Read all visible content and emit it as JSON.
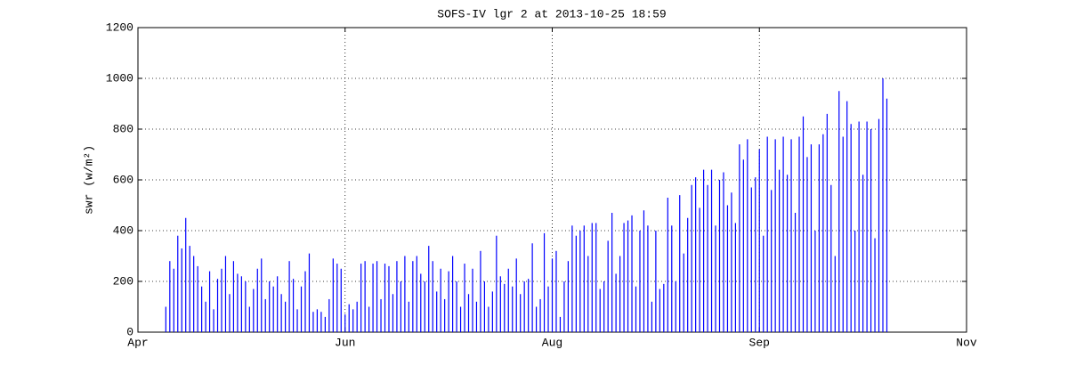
{
  "chart_data": {
    "type": "stem",
    "title": "SOFS-IV lgr 2 at 2013-10-25 18:59",
    "ylabel": "swr (w/m²)",
    "xlim": [
      0,
      208
    ],
    "xticks": [
      {
        "value": 0,
        "label": "Apr"
      },
      {
        "value": 52,
        "label": "Jun"
      },
      {
        "value": 104,
        "label": "Aug"
      },
      {
        "value": 156,
        "label": "Sep"
      },
      {
        "value": 208,
        "label": "Nov"
      }
    ],
    "ylim": [
      0,
      1200
    ],
    "yticks": [
      0,
      200,
      400,
      600,
      800,
      1000,
      1200
    ],
    "grid": true,
    "color": "#0000ff",
    "x": [
      7,
      8,
      9,
      10,
      11,
      12,
      13,
      14,
      15,
      16,
      17,
      18,
      19,
      20,
      21,
      22,
      23,
      24,
      25,
      26,
      27,
      28,
      29,
      30,
      31,
      32,
      33,
      34,
      35,
      36,
      37,
      38,
      39,
      40,
      41,
      42,
      43,
      44,
      45,
      46,
      47,
      48,
      49,
      50,
      51,
      52,
      53,
      54,
      55,
      56,
      57,
      58,
      59,
      60,
      61,
      62,
      63,
      64,
      65,
      66,
      67,
      68,
      69,
      70,
      71,
      72,
      73,
      74,
      75,
      76,
      77,
      78,
      79,
      80,
      81,
      82,
      83,
      84,
      85,
      86,
      87,
      88,
      89,
      90,
      91,
      92,
      93,
      94,
      95,
      96,
      97,
      98,
      99,
      100,
      101,
      102,
      103,
      104,
      105,
      106,
      107,
      108,
      109,
      110,
      111,
      112,
      113,
      114,
      115,
      116,
      117,
      118,
      119,
      120,
      121,
      122,
      123,
      124,
      125,
      126,
      127,
      128,
      129,
      130,
      131,
      132,
      133,
      134,
      135,
      136,
      137,
      138,
      139,
      140,
      141,
      142,
      143,
      144,
      145,
      146,
      147,
      148,
      149,
      150,
      151,
      152,
      153,
      154,
      155,
      156,
      157,
      158,
      159,
      160,
      161,
      162,
      163,
      164,
      165,
      166,
      167,
      168,
      169,
      170,
      171,
      172,
      173,
      174,
      175,
      176,
      177,
      178,
      179,
      180,
      181,
      182,
      183,
      184,
      185,
      186,
      187,
      188
    ],
    "values": [
      100,
      280,
      250,
      380,
      330,
      450,
      340,
      300,
      260,
      180,
      120,
      240,
      90,
      210,
      250,
      300,
      150,
      280,
      230,
      220,
      200,
      100,
      170,
      250,
      290,
      130,
      200,
      180,
      220,
      150,
      120,
      280,
      210,
      90,
      180,
      240,
      310,
      80,
      90,
      80,
      60,
      130,
      290,
      270,
      250,
      70,
      110,
      90,
      120,
      270,
      280,
      100,
      270,
      280,
      130,
      270,
      260,
      150,
      280,
      200,
      300,
      120,
      280,
      300,
      230,
      200,
      340,
      280,
      160,
      250,
      130,
      240,
      300,
      200,
      100,
      270,
      150,
      250,
      120,
      320,
      200,
      100,
      160,
      380,
      220,
      190,
      250,
      180,
      290,
      150,
      200,
      210,
      350,
      100,
      130,
      390,
      180,
      290,
      320,
      60,
      200,
      280,
      420,
      380,
      400,
      420,
      300,
      430,
      430,
      170,
      200,
      360,
      470,
      230,
      300,
      430,
      440,
      460,
      180,
      400,
      480,
      420,
      120,
      400,
      170,
      190,
      530,
      420,
      200,
      540,
      310,
      450,
      580,
      610,
      490,
      640,
      580,
      640,
      420,
      600,
      630,
      500,
      550,
      430,
      740,
      680,
      760,
      570,
      610,
      720,
      380,
      770,
      560,
      760,
      640,
      770,
      620,
      760,
      470,
      770,
      850,
      690,
      740,
      400,
      740,
      780,
      860,
      580,
      300,
      950,
      770,
      910,
      820,
      400,
      830,
      620,
      830,
      800,
      370,
      840,
      1000,
      920
    ]
  }
}
